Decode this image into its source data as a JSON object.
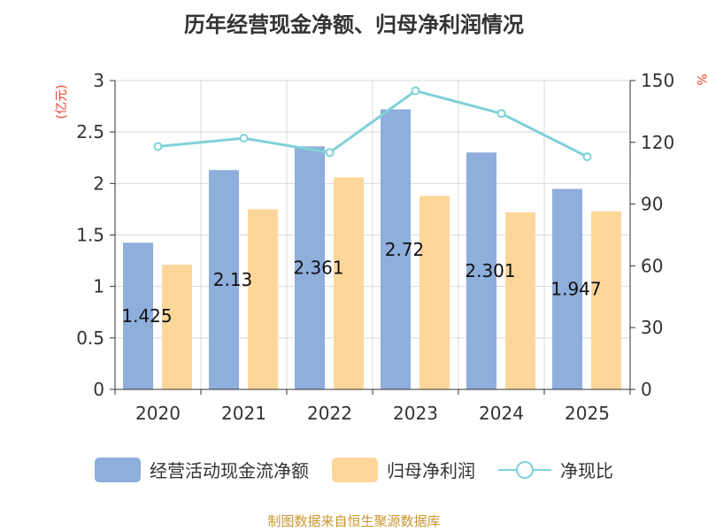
{
  "title": "历年经营现金净额、归母净利润情况",
  "source": "制图数据来自恒生聚源数据库",
  "left_unit": "(亿元)",
  "right_unit": "%",
  "colors": {
    "cash": "#8eaedb",
    "profit": "#fdd79a",
    "ratio": "#7fd1d8",
    "unit": "#e8412f"
  },
  "legend": {
    "cash": "经营活动现金流净额",
    "profit": "归母净利润",
    "ratio": "净现比"
  },
  "chart_data": {
    "type": "bar",
    "categories": [
      "2020",
      "2021",
      "2022",
      "2023",
      "2024",
      "2025"
    ],
    "series": [
      {
        "name": "经营活动现金流净额",
        "type": "bar",
        "axis": "left",
        "values": [
          1.425,
          2.13,
          2.361,
          2.72,
          2.301,
          1.947
        ],
        "labels": [
          "1.425",
          "2.13",
          "2.361",
          "2.72",
          "2.301",
          "1.947"
        ]
      },
      {
        "name": "归母净利润",
        "type": "bar",
        "axis": "left",
        "values": [
          1.21,
          1.75,
          2.06,
          1.88,
          1.72,
          1.73
        ]
      },
      {
        "name": "净现比",
        "type": "line",
        "axis": "right",
        "values": [
          118,
          122,
          115,
          145,
          134,
          113
        ]
      }
    ],
    "yleft": {
      "min": 0,
      "max": 3,
      "ticks": [
        "0",
        "0.5",
        "1",
        "1.5",
        "2",
        "2.5",
        "3"
      ]
    },
    "yright": {
      "min": 0,
      "max": 150,
      "ticks": [
        "0",
        "30",
        "60",
        "90",
        "120",
        "150"
      ]
    },
    "grid": true,
    "legend_position": "bottom"
  }
}
